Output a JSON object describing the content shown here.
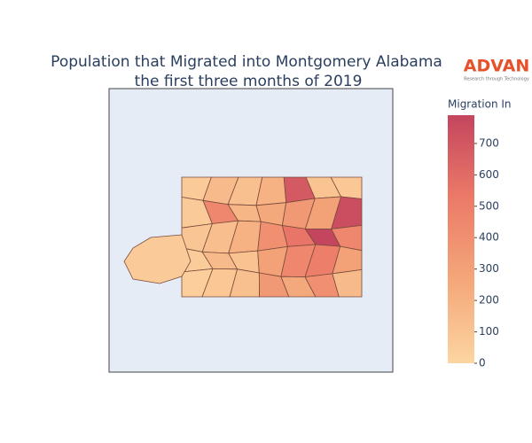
{
  "chart_data": {
    "type": "choropleth",
    "title": "Population that Migrated into Montgomery Alabama",
    "subtitle": "the first three months of 2019",
    "logo": "ADVAN",
    "logo_tagline": "Research through Technology",
    "colorbar_title": "Migration In",
    "zlim": [
      0,
      790
    ],
    "zticks": [
      0,
      100,
      200,
      300,
      400,
      500,
      600,
      700
    ],
    "colorscale": [
      "#fcd5a1",
      "#f4a77a",
      "#ec7a68",
      "#c4455e"
    ],
    "values": [
      60,
      150,
      120,
      200,
      690,
      100,
      80,
      60,
      450,
      180,
      250,
      350,
      300,
      750,
      90,
      130,
      200,
      400,
      550,
      790,
      450,
      50,
      150,
      110,
      300,
      450,
      500,
      300,
      40,
      80,
      120,
      350,
      250,
      400,
      150,
      60
    ]
  }
}
